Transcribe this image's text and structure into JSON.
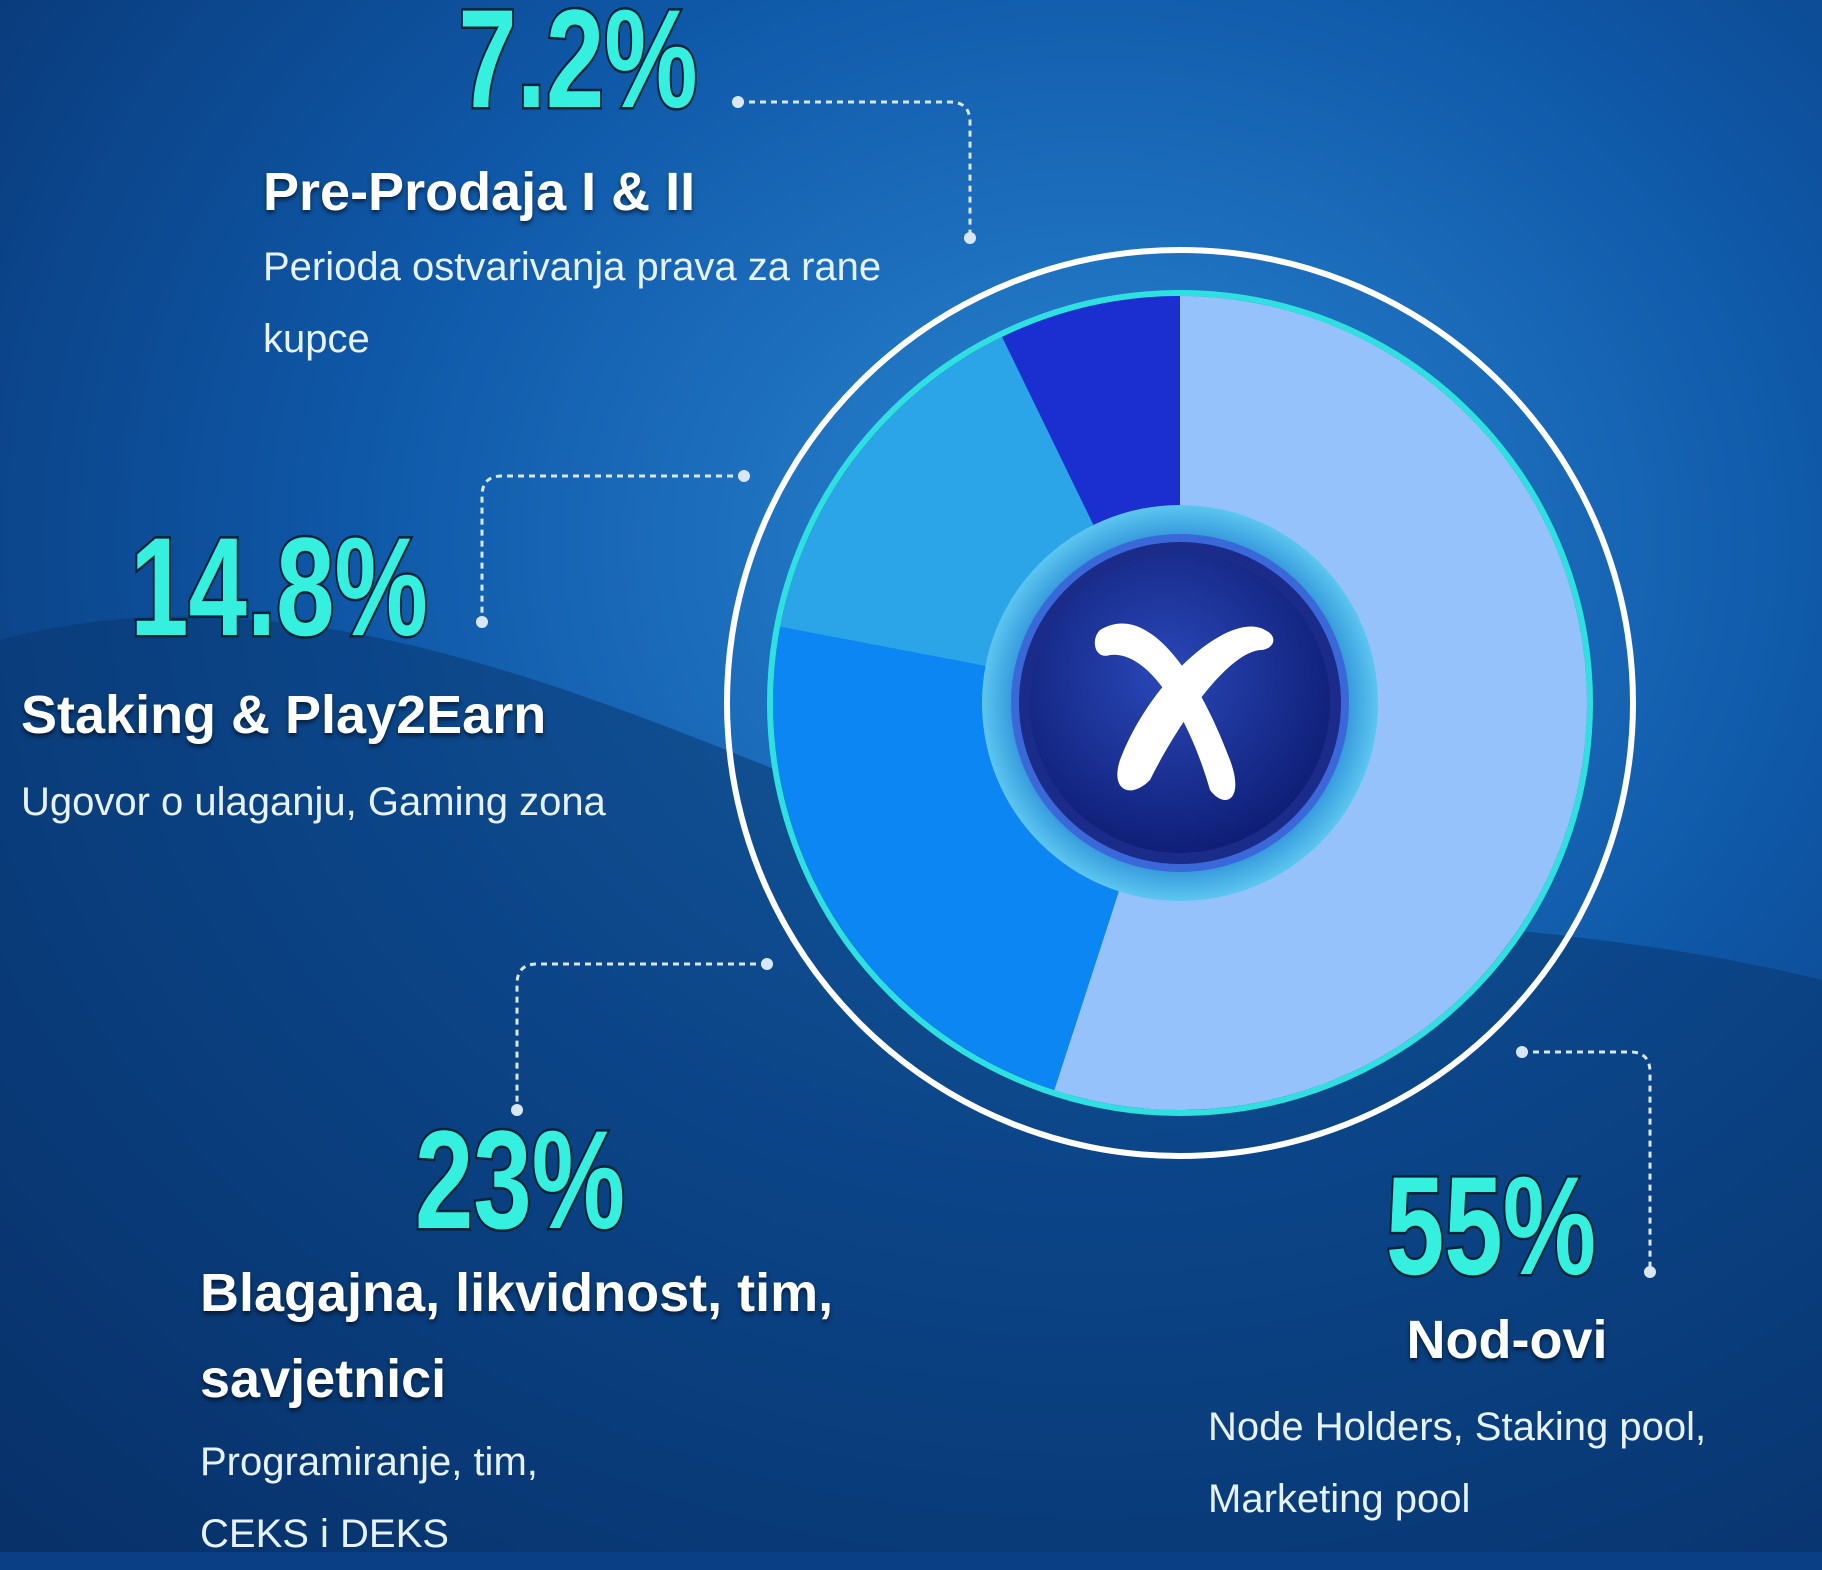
{
  "chart_data": {
    "type": "pie",
    "categories": [
      "Nod-ovi",
      "Blagajna, likvidnost, tim, savjetnici",
      "Staking & Play2Earn",
      "Pre-Prodaja I & II"
    ],
    "values": [
      55,
      23,
      14.8,
      7.2
    ],
    "value_labels": [
      "55%",
      "23%",
      "14.8%",
      "7.2%"
    ],
    "descriptions": [
      "Node Holders, Staking pool, Marketing pool",
      "Programiranje, tim, CEKS i DEKS",
      "Ugovor o ulaganju, Gaming zona",
      "Perioda ostvarivanja prava za rane kupce"
    ],
    "colors": [
      "#95c2fb",
      "#0b86f2",
      "#2ba4e8",
      "#1b2fd0"
    ]
  }
}
